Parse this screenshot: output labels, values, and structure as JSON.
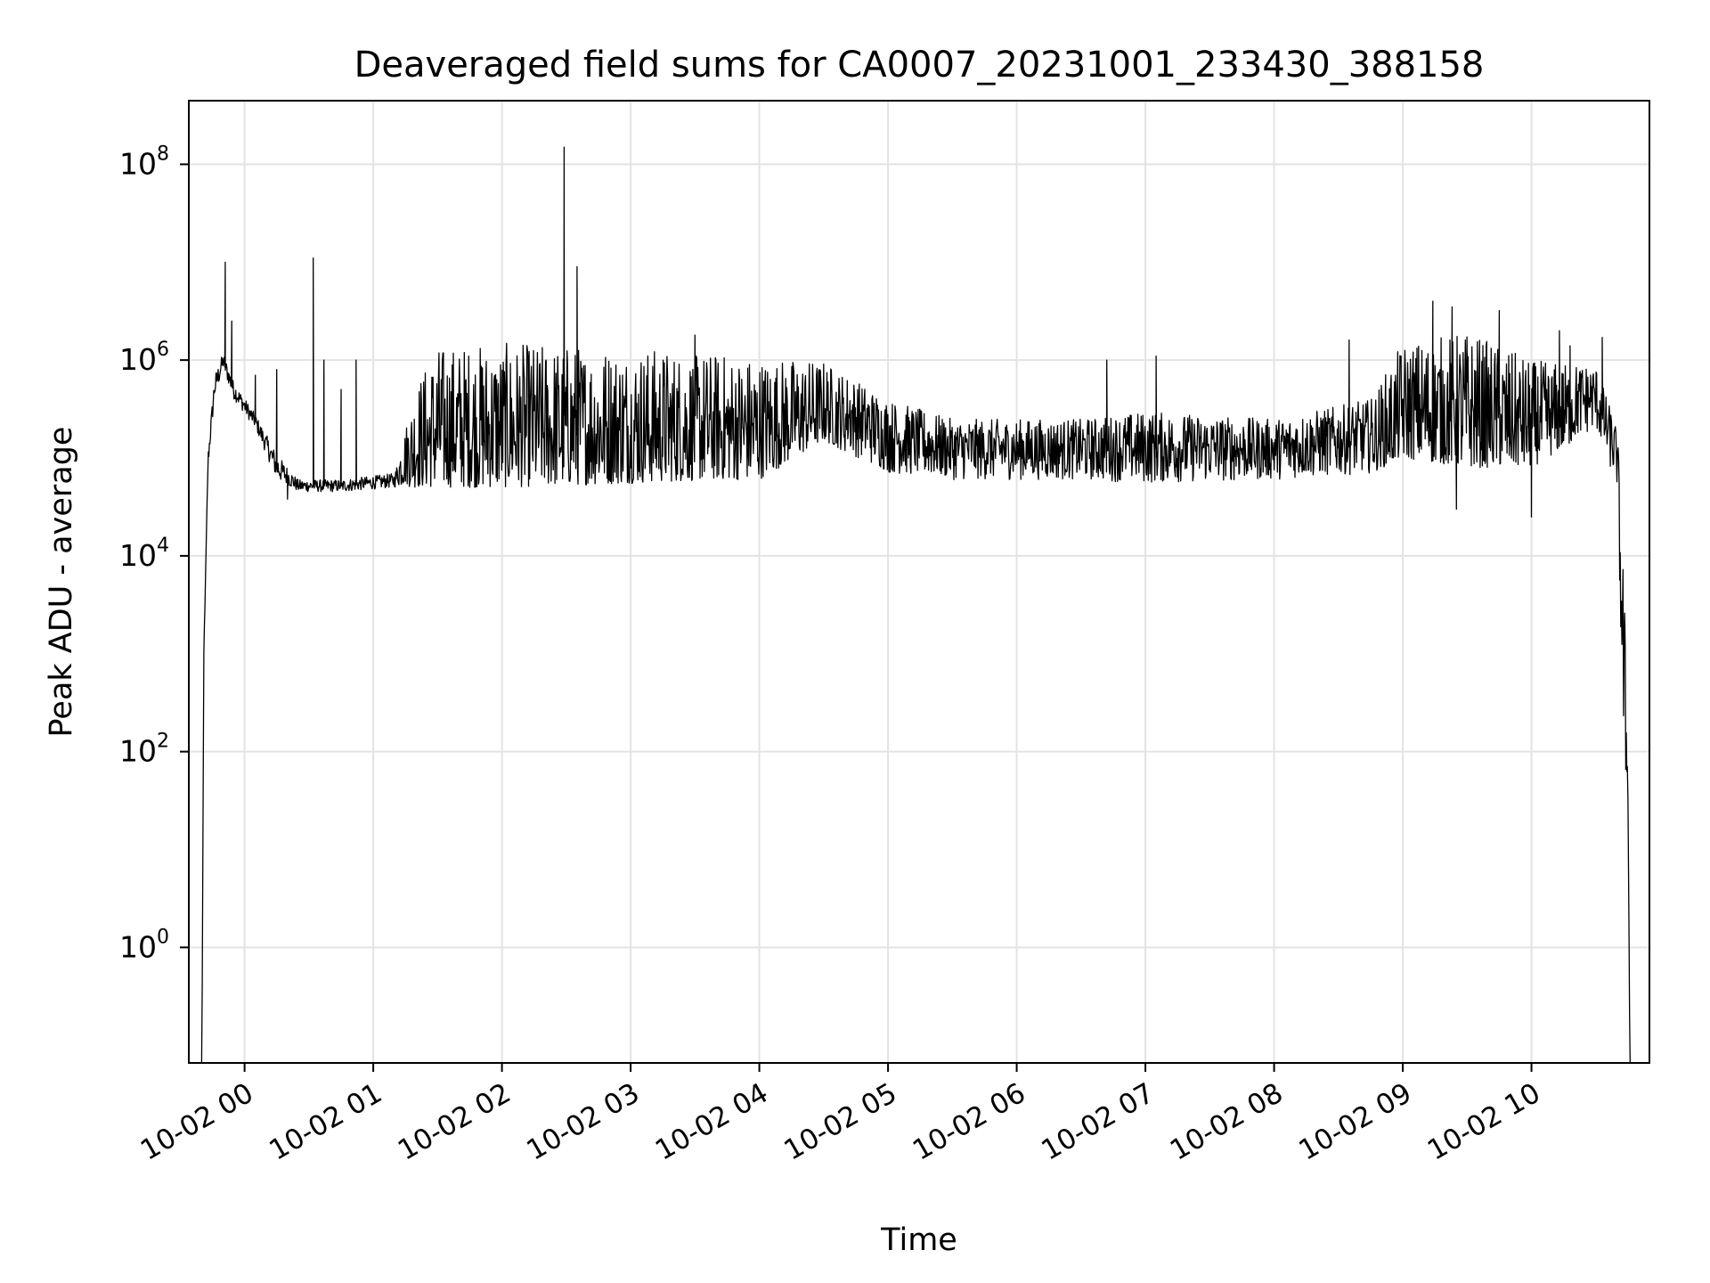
{
  "chart_data": {
    "type": "line",
    "title": "Deaveraged field sums for CA0007_20231001_233430_388158",
    "xlabel": "Time",
    "ylabel": "Peak ADU - average",
    "yscale": "log",
    "xlim": [
      "2023-10-01 23:34",
      "2023-10-02 10:55"
    ],
    "ylim_exponent": [
      -1.18,
      8.65
    ],
    "grid": true,
    "line_color": "#000000",
    "x_ticks": [
      {
        "time": "2023-10-02 00:00",
        "label": "10-02 00"
      },
      {
        "time": "2023-10-02 01:00",
        "label": "10-02 01"
      },
      {
        "time": "2023-10-02 02:00",
        "label": "10-02 02"
      },
      {
        "time": "2023-10-02 03:00",
        "label": "10-02 03"
      },
      {
        "time": "2023-10-02 04:00",
        "label": "10-02 04"
      },
      {
        "time": "2023-10-02 05:00",
        "label": "10-02 05"
      },
      {
        "time": "2023-10-02 06:00",
        "label": "10-02 06"
      },
      {
        "time": "2023-10-02 07:00",
        "label": "10-02 07"
      },
      {
        "time": "2023-10-02 08:00",
        "label": "10-02 08"
      },
      {
        "time": "2023-10-02 09:00",
        "label": "10-02 09"
      },
      {
        "time": "2023-10-02 10:00",
        "label": "10-02 10"
      }
    ],
    "y_ticks": [
      {
        "exponent": 0,
        "base": "10",
        "sup": "0"
      },
      {
        "exponent": 2,
        "base": "10",
        "sup": "2"
      },
      {
        "exponent": 4,
        "base": "10",
        "sup": "4"
      },
      {
        "exponent": 6,
        "base": "10",
        "sup": "6"
      },
      {
        "exponent": 8,
        "base": "10",
        "sup": "8"
      }
    ],
    "envelope": [
      {
        "time": "2023-10-01 23:40",
        "low": 0.03,
        "high": 0.03
      },
      {
        "time": "2023-10-01 23:41",
        "low": 1000,
        "high": 1000
      },
      {
        "time": "2023-10-01 23:43",
        "low": 80000,
        "high": 120000
      },
      {
        "time": "2023-10-01 23:46",
        "low": 400000,
        "high": 700000
      },
      {
        "time": "2023-10-01 23:50",
        "low": 800000,
        "high": 1200000
      },
      {
        "time": "2023-10-01 23:55",
        "low": 400000,
        "high": 600000
      },
      {
        "time": "2023-10-02 00:05",
        "low": 200000,
        "high": 280000
      },
      {
        "time": "2023-10-02 00:15",
        "low": 60000,
        "high": 110000
      },
      {
        "time": "2023-10-02 00:25",
        "low": 45000,
        "high": 60000
      },
      {
        "time": "2023-10-02 00:45",
        "low": 45000,
        "high": 60000
      },
      {
        "time": "2023-10-02 01:10",
        "low": 50000,
        "high": 70000
      },
      {
        "time": "2023-10-02 01:20",
        "low": 50000,
        "high": 600000
      },
      {
        "time": "2023-10-02 01:30",
        "low": 50000,
        "high": 1400000
      },
      {
        "time": "2023-10-02 02:00",
        "low": 50000,
        "high": 1500000
      },
      {
        "time": "2023-10-02 03:00",
        "low": 55000,
        "high": 1400000
      },
      {
        "time": "2023-10-02 03:40",
        "low": 60000,
        "high": 1200000
      },
      {
        "time": "2023-10-02 04:00",
        "low": 60000,
        "high": 1100000
      },
      {
        "time": "2023-10-02 04:30",
        "low": 150000,
        "high": 1000000
      },
      {
        "time": "2023-10-02 05:00",
        "low": 70000,
        "high": 400000
      },
      {
        "time": "2023-10-02 05:30",
        "low": 60000,
        "high": 250000
      },
      {
        "time": "2023-10-02 06:30",
        "low": 60000,
        "high": 250000
      },
      {
        "time": "2023-10-02 07:00",
        "low": 55000,
        "high": 300000
      },
      {
        "time": "2023-10-02 08:00",
        "low": 60000,
        "high": 250000
      },
      {
        "time": "2023-10-02 08:45",
        "low": 70000,
        "high": 400000
      },
      {
        "time": "2023-10-02 09:00",
        "low": 100000,
        "high": 1500000
      },
      {
        "time": "2023-10-02 09:30",
        "low": 80000,
        "high": 2000000
      },
      {
        "time": "2023-10-02 10:00",
        "low": 80000,
        "high": 1000000
      },
      {
        "time": "2023-10-02 10:30",
        "low": 200000,
        "high": 900000
      },
      {
        "time": "2023-10-02 10:40",
        "low": 50000,
        "high": 200000
      },
      {
        "time": "2023-10-02 10:43",
        "low": 100,
        "high": 10000
      },
      {
        "time": "2023-10-02 10:45",
        "low": 30,
        "high": 60
      },
      {
        "time": "2023-10-02 10:46",
        "low": 0.03,
        "high": 0.03
      }
    ],
    "spikes": [
      {
        "time": "2023-10-01 23:51",
        "value": 10000000
      },
      {
        "time": "2023-10-01 23:54",
        "value": 2500000
      },
      {
        "time": "2023-10-02 00:05",
        "value": 700000
      },
      {
        "time": "2023-10-02 00:15",
        "value": 800000
      },
      {
        "time": "2023-10-02 00:32",
        "value": 11000000
      },
      {
        "time": "2023-10-02 00:37",
        "value": 1000000
      },
      {
        "time": "2023-10-02 00:45",
        "value": 500000
      },
      {
        "time": "2023-10-02 00:52",
        "value": 1000000
      },
      {
        "time": "2023-10-02 02:29",
        "value": 150000000
      },
      {
        "time": "2023-10-02 02:35",
        "value": 9000000
      },
      {
        "time": "2023-10-02 03:30",
        "value": 1800000
      },
      {
        "time": "2023-10-02 06:42",
        "value": 1000000
      },
      {
        "time": "2023-10-02 07:05",
        "value": 1100000
      },
      {
        "time": "2023-10-02 08:35",
        "value": 1600000
      },
      {
        "time": "2023-10-02 09:14",
        "value": 4000000
      },
      {
        "time": "2023-10-02 09:23",
        "value": 3500000
      },
      {
        "time": "2023-10-02 09:45",
        "value": 3200000
      },
      {
        "time": "2023-10-02 10:13",
        "value": 2000000
      },
      {
        "time": "2023-10-02 10:18",
        "value": 1400000
      },
      {
        "time": "2023-10-02 10:33",
        "value": 1700000
      },
      {
        "time": "2023-10-02 10:00",
        "value": 25000
      },
      {
        "time": "2023-10-02 09:25",
        "value": 30000
      },
      {
        "time": "2023-10-02 00:20",
        "value": 38000
      }
    ]
  }
}
